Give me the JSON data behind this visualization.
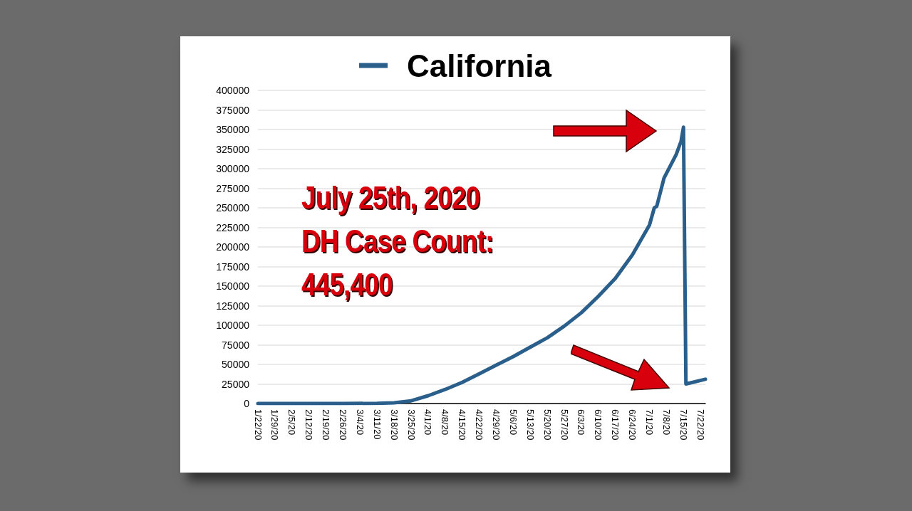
{
  "chart_data": {
    "type": "line",
    "x": [
      "2020-01-22",
      "2020-02-26",
      "2020-03-11",
      "2020-03-18",
      "2020-03-25",
      "2020-04-01",
      "2020-04-08",
      "2020-04-15",
      "2020-04-22",
      "2020-04-29",
      "2020-05-06",
      "2020-05-13",
      "2020-05-20",
      "2020-05-27",
      "2020-06-03",
      "2020-06-10",
      "2020-06-17",
      "2020-06-24",
      "2020-07-01",
      "2020-07-03",
      "2020-07-04",
      "2020-07-07",
      "2020-07-12",
      "2020-07-14",
      "2020-07-15",
      "2020-07-16",
      "2020-07-24"
    ],
    "series": [
      {
        "name": "California",
        "color": "#2a5f8c",
        "values": [
          0,
          0,
          200,
          1000,
          3500,
          10000,
          18000,
          27000,
          38000,
          49000,
          60000,
          72000,
          84000,
          99000,
          116000,
          137000,
          160000,
          190000,
          228000,
          250000,
          252000,
          288000,
          318000,
          335000,
          353000,
          25000,
          31000
        ]
      }
    ],
    "xlim": [
      "2020-01-22",
      "2020-07-24"
    ],
    "xticks": [
      {
        "value": "2020-01-22",
        "label": "1/22/20"
      },
      {
        "value": "2020-01-29",
        "label": "1/29/20"
      },
      {
        "value": "2020-02-05",
        "label": "2/5/20"
      },
      {
        "value": "2020-02-12",
        "label": "2/12/20"
      },
      {
        "value": "2020-02-19",
        "label": "2/19/20"
      },
      {
        "value": "2020-02-26",
        "label": "2/26/20"
      },
      {
        "value": "2020-03-04",
        "label": "3/4/20"
      },
      {
        "value": "2020-03-11",
        "label": "3/11/20"
      },
      {
        "value": "2020-03-18",
        "label": "3/18/20"
      },
      {
        "value": "2020-03-25",
        "label": "3/25/20"
      },
      {
        "value": "2020-04-01",
        "label": "4/1/20"
      },
      {
        "value": "2020-04-08",
        "label": "4/8/20"
      },
      {
        "value": "2020-04-15",
        "label": "4/15/20"
      },
      {
        "value": "2020-04-22",
        "label": "4/22/20"
      },
      {
        "value": "2020-04-29",
        "label": "4/29/20"
      },
      {
        "value": "2020-05-06",
        "label": "5/6/20"
      },
      {
        "value": "2020-05-13",
        "label": "5/13/20"
      },
      {
        "value": "2020-05-20",
        "label": "5/20/20"
      },
      {
        "value": "2020-05-27",
        "label": "5/27/20"
      },
      {
        "value": "2020-06-03",
        "label": "6/3/20"
      },
      {
        "value": "2020-06-10",
        "label": "6/10/20"
      },
      {
        "value": "2020-06-17",
        "label": "6/17/20"
      },
      {
        "value": "2020-06-24",
        "label": "6/24/20"
      },
      {
        "value": "2020-07-01",
        "label": "7/1/20"
      },
      {
        "value": "2020-07-08",
        "label": "7/8/20"
      },
      {
        "value": "2020-07-15",
        "label": "7/15/20"
      },
      {
        "value": "2020-07-22",
        "label": "7/22/20"
      }
    ],
    "ylim": [
      0,
      400000
    ],
    "yticks": [
      0,
      25000,
      50000,
      75000,
      100000,
      125000,
      150000,
      175000,
      200000,
      225000,
      250000,
      275000,
      300000,
      325000,
      350000,
      375000,
      400000
    ],
    "annotations": [
      "July 25th, 2020",
      "DH Case Count:",
      "445,400"
    ],
    "grid": "y",
    "legend": "top",
    "marker": "none",
    "line_style": "solid"
  }
}
